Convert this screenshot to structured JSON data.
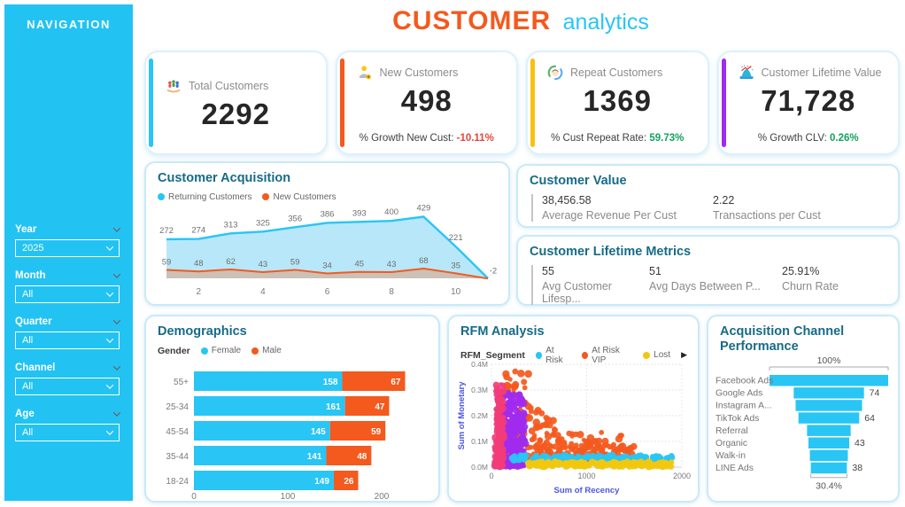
{
  "header": {
    "title_primary": "CUSTOMER",
    "title_secondary": "analytics"
  },
  "sidebar": {
    "title": "NAVIGATION",
    "filters": [
      {
        "label": "Year",
        "value": "2025"
      },
      {
        "label": "Month",
        "value": "All"
      },
      {
        "label": "Quarter",
        "value": "All"
      },
      {
        "label": "Channel",
        "value": "All"
      },
      {
        "label": "Age",
        "value": "All"
      }
    ]
  },
  "kpis": [
    {
      "icon": "people-on-hand-icon",
      "label": "Total Customers",
      "value": "2292",
      "accent": "#29C5F5"
    },
    {
      "icon": "person-add-icon",
      "label": "New Customers",
      "value": "498",
      "sub_label": "% Growth New Cust:",
      "sub_value": "-10.11%",
      "sub_color": "#E8443B",
      "accent": "#F4591D"
    },
    {
      "icon": "repeat-customer-icon",
      "label": "Repeat Customers",
      "value": "1369",
      "sub_label": "% Cust Repeat Rate:",
      "sub_value": "59.73%",
      "sub_color": "#12A25E",
      "accent": "#F8C112"
    },
    {
      "icon": "lifetime-value-icon",
      "label": "Customer Lifetime Value",
      "value": "71,728",
      "sub_label": "% Growth CLV:",
      "sub_value": "0.26%",
      "sub_color": "#12A25E",
      "accent": "#A02BEF"
    }
  ],
  "customer_value": {
    "title": "Customer Value",
    "metrics": [
      {
        "value": "38,456.58",
        "label": "Average Revenue Per Cust"
      },
      {
        "value": "2.22",
        "label": "Transactions per Cust"
      }
    ]
  },
  "lifetime_metrics": {
    "title": "Customer Lifetime Metrics",
    "metrics": [
      {
        "value": "55",
        "label": "Avg Customer Lifesp..."
      },
      {
        "value": "51",
        "label": "Avg Days Between P..."
      },
      {
        "value": "25.91%",
        "label": "Churn Rate"
      }
    ]
  },
  "chart_data": [
    {
      "id": "customer_acquisition",
      "type": "area",
      "title": "Customer Acquisition",
      "x": [
        1,
        2,
        3,
        4,
        5,
        6,
        7,
        8,
        9,
        10,
        11
      ],
      "xticks": [
        2,
        4,
        6,
        8,
        10
      ],
      "legend_position": "top",
      "series": [
        {
          "name": "Returning Customers",
          "color": "#29C5F5",
          "fill": "#B7E7F9",
          "values": [
            272,
            274,
            313,
            325,
            356,
            386,
            393,
            400,
            429,
            221,
            0
          ],
          "labels": [
            "272",
            "274",
            "313",
            "325",
            "356",
            "386",
            "393",
            "400",
            "429",
            "221",
            ""
          ]
        },
        {
          "name": "New Customers",
          "color": "#F4591D",
          "fill": "#CBC1B7",
          "values": [
            59,
            48,
            62,
            43,
            59,
            34,
            45,
            43,
            68,
            35,
            -2
          ],
          "labels": [
            "59",
            "48",
            "62",
            "43",
            "59",
            "34",
            "45",
            "43",
            "68",
            "35",
            "-2"
          ]
        }
      ]
    },
    {
      "id": "demographics",
      "type": "bar",
      "title": "Demographics",
      "legend_title": "Gender",
      "orientation": "horizontal-stacked",
      "categories": [
        "55+",
        "25-34",
        "45-54",
        "35-44",
        "18-24"
      ],
      "series": [
        {
          "name": "Female",
          "color": "#29C5F5",
          "values": [
            158,
            161,
            145,
            141,
            149
          ]
        },
        {
          "name": "Male",
          "color": "#F4591D",
          "values": [
            67,
            47,
            59,
            48,
            26
          ]
        }
      ],
      "xticks": [
        0,
        100,
        200
      ],
      "xlim": [
        0,
        250
      ],
      "grid": false
    },
    {
      "id": "rfm",
      "type": "scatter",
      "title": "RFM Analysis",
      "legend_title": "RFM_Segment",
      "legend": [
        {
          "name": "At Risk",
          "color": "#29C5F5"
        },
        {
          "name": "At Risk VIP",
          "color": "#F4591D"
        },
        {
          "name": "Lost",
          "color": "#F2C80F"
        }
      ],
      "legend_more_icon": "▶",
      "xlabel": "Sum of Recency",
      "ylabel": "Sum of Monetary",
      "xlim": [
        0,
        2000
      ],
      "ylim": [
        0,
        400000
      ],
      "xticks": [
        "0",
        "1000",
        "2000"
      ],
      "yticks": [
        "0.0M",
        "0.1M",
        "0.2M",
        "0.3M",
        "0.4M"
      ],
      "grid": true,
      "clusters": [
        {
          "segment": "At Risk VIP",
          "color": "#F4591D",
          "count": 330,
          "shape": "decay",
          "x": [
            150,
            1500
          ],
          "y": [
            30000,
            380000
          ]
        },
        {
          "segment": "At Risk VIP",
          "color": "#F4591D",
          "count": 7,
          "shape": "uniform",
          "x": [
            230,
            430
          ],
          "y": [
            295000,
            400000
          ]
        },
        {
          "segment": "At Risk VIP",
          "color": "#F4591D",
          "count": 5,
          "shape": "uniform",
          "x": [
            1050,
            1500
          ],
          "y": [
            100000,
            135000
          ]
        },
        {
          "segment": "other-purple",
          "color": "#A02BEF",
          "count": 290,
          "shape": "column",
          "x": [
            55,
            360
          ],
          "y": [
            2000,
            290000
          ]
        },
        {
          "segment": "other-pink",
          "color": "#F23C77",
          "count": 135,
          "shape": "column",
          "x": [
            38,
            130
          ],
          "y": [
            2000,
            335000
          ]
        },
        {
          "segment": "At Risk",
          "color": "#29C5F5",
          "count": 150,
          "shape": "uniform",
          "x": [
            200,
            1900
          ],
          "y": [
            27000,
            45000
          ]
        },
        {
          "segment": "Lost",
          "color": "#F2C80F",
          "count": 200,
          "shape": "uniform",
          "x": [
            370,
            1900
          ],
          "y": [
            2000,
            20000
          ]
        }
      ]
    },
    {
      "id": "acquisition_channel",
      "type": "funnel",
      "title": "Acquisition Channel Performance",
      "bar_color": "#29C5F5",
      "categories": [
        "Facebook Ads",
        "Google Ads",
        "Instagram A...",
        "TikTok Ads",
        "Referral",
        "Organic",
        "Walk-in",
        "LINE Ads"
      ],
      "values": [
        125,
        74,
        70,
        64,
        46,
        43,
        40,
        38
      ],
      "value_labels": [
        "",
        "74",
        "",
        "64",
        "",
        "43",
        "",
        "38"
      ],
      "top_label": "100%",
      "bottom_label": "30.4%"
    }
  ]
}
